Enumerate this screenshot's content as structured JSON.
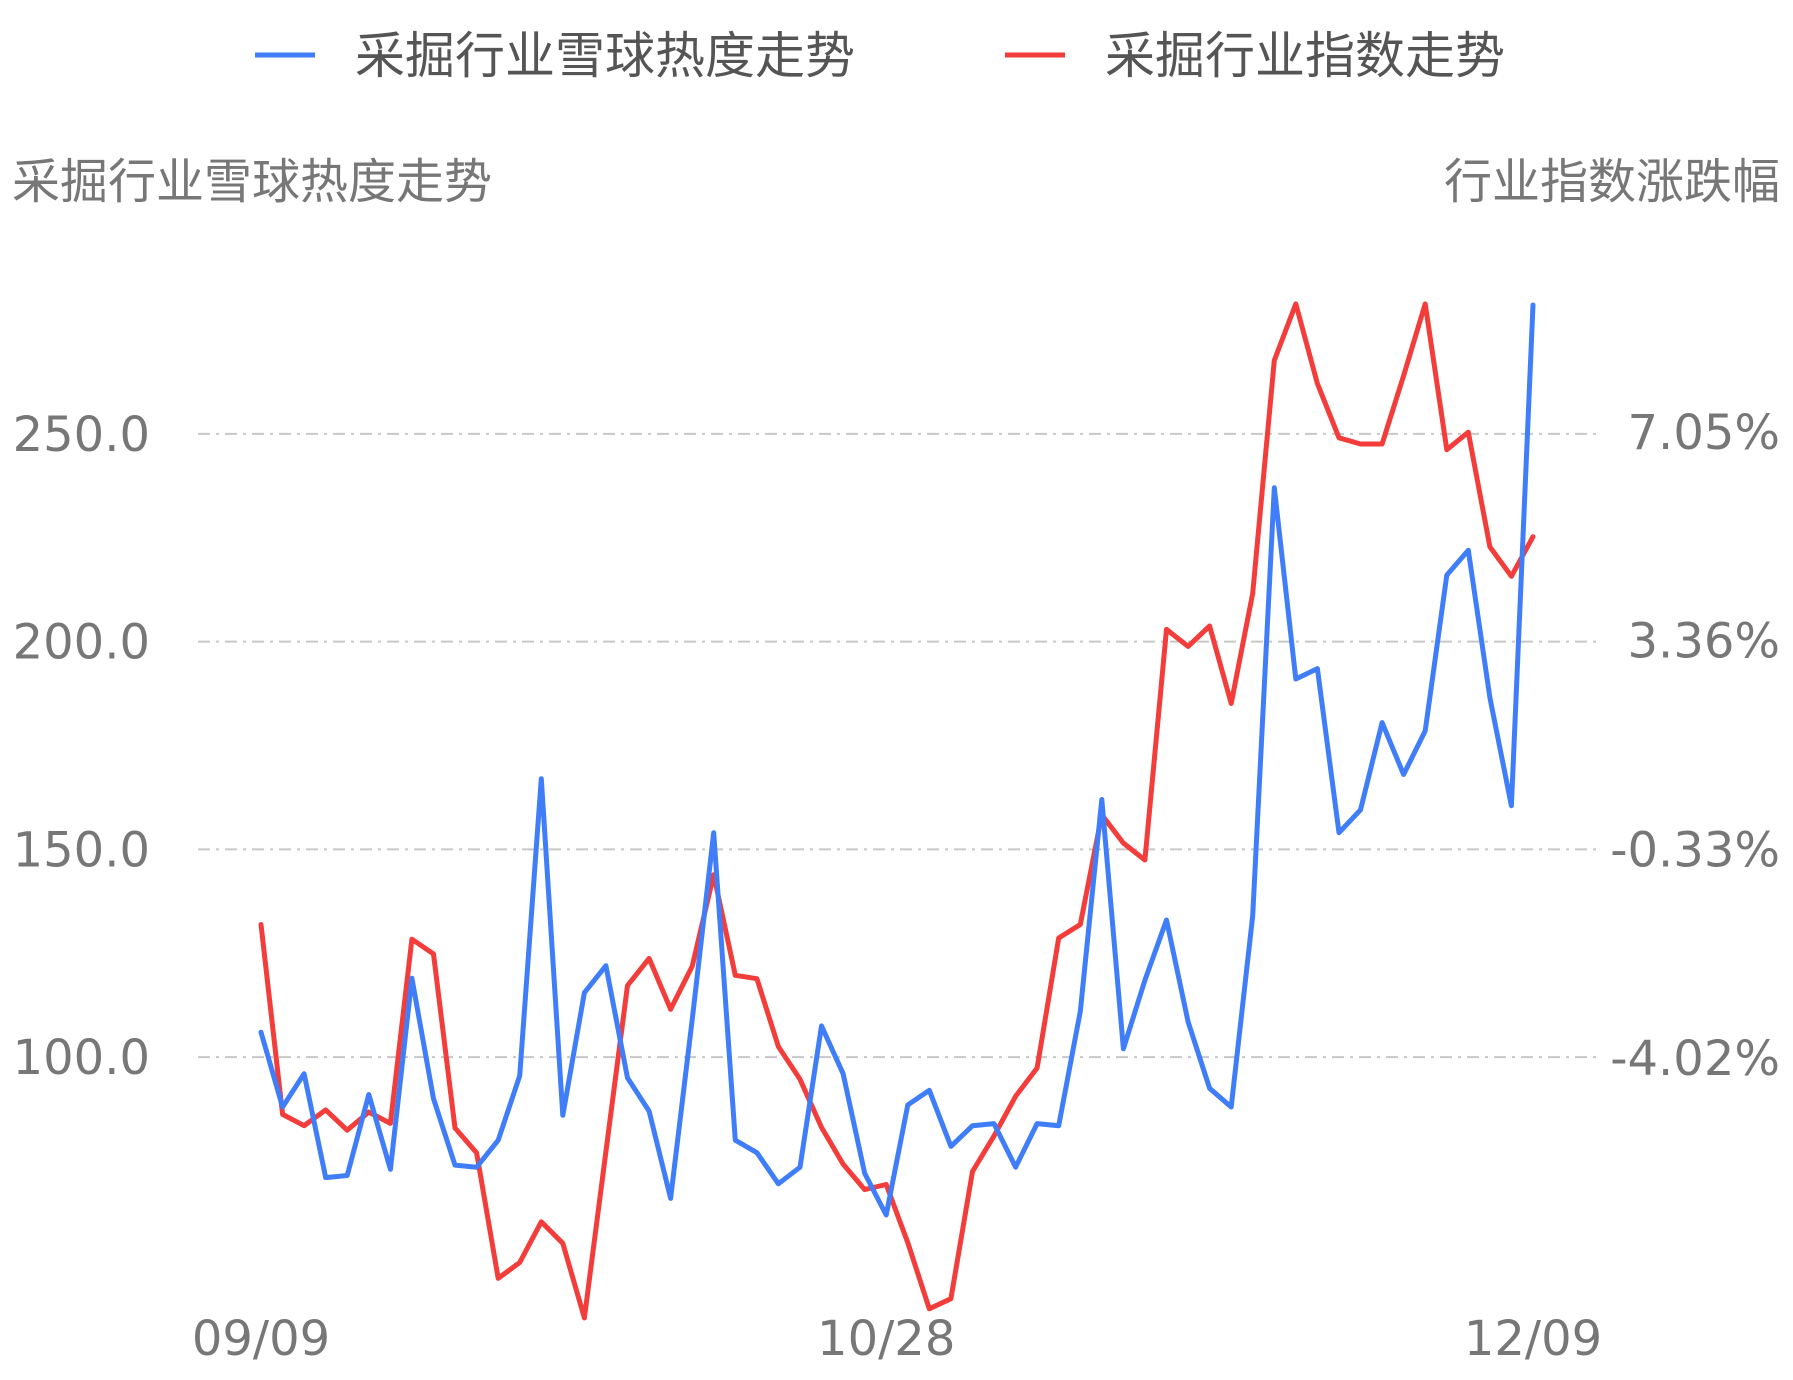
{
  "chart_data": {
    "type": "line",
    "legend": {
      "position": "top",
      "items": [
        {
          "name": "采掘行业雪球热度走势",
          "color": "#3f7ef8"
        },
        {
          "name": "采掘行业指数走势",
          "color": "#f23d3b"
        }
      ]
    },
    "left_axis": {
      "title": "采掘行业雪球热度走势",
      "ticks": [
        {
          "value": 250,
          "label": "250.0"
        },
        {
          "value": 200,
          "label": "200.0"
        },
        {
          "value": 150,
          "label": "150.0"
        },
        {
          "value": 100,
          "label": "100.0"
        }
      ],
      "range": [
        62,
        281
      ]
    },
    "right_axis": {
      "title": "行业指数涨跌幅",
      "ticks": [
        {
          "value": 7.05,
          "label": "7.05%"
        },
        {
          "value": 3.36,
          "label": "3.36%"
        },
        {
          "value": -0.33,
          "label": "-0.33%"
        },
        {
          "value": -4.02,
          "label": "-4.02%"
        }
      ],
      "range": [
        -6.8,
        9.3
      ]
    },
    "x_axis": {
      "ticks": [
        {
          "index": 0,
          "label": "09/09"
        },
        {
          "index": 29,
          "label": "10/28"
        },
        {
          "index": 59,
          "label": "12/09"
        }
      ]
    },
    "grid": true,
    "series": [
      {
        "name": "采掘行业雪球热度走势",
        "axis": "left",
        "color": "#3f7ef8",
        "values": [
          106,
          88,
          96,
          71,
          71.5,
          91,
          73,
          119,
          90,
          74,
          73.5,
          80,
          95.5,
          167,
          86,
          115.5,
          122,
          95,
          87,
          66,
          109,
          154,
          80,
          77,
          69.5,
          73.5,
          107.5,
          96,
          72,
          62,
          88.5,
          92,
          78.5,
          83.5,
          84,
          73.5,
          84,
          83.5,
          111,
          162,
          102,
          118.5,
          133,
          108.5,
          92.5,
          88,
          134,
          237,
          191,
          193.5,
          154,
          159.5,
          180.5,
          168,
          178.5,
          216,
          222,
          186.5,
          160.5,
          281
        ]
      },
      {
        "name": "采掘行业指数走势",
        "axis": "right",
        "color": "#f23d3b",
        "values": [
          -1.66,
          -5.02,
          -5.22,
          -4.94,
          -5.3,
          -4.98,
          -5.18,
          -1.92,
          -2.18,
          -5.26,
          -5.7,
          -7.92,
          -7.64,
          -6.92,
          -7.3,
          -8.62,
          -5.68,
          -2.74,
          -2.26,
          -3.16,
          -2.4,
          -0.78,
          -2.56,
          -2.62,
          -3.82,
          -4.4,
          -5.25,
          -5.9,
          -6.35,
          -6.26,
          -7.29,
          -8.46,
          -8.28,
          -6.03,
          -5.4,
          -4.7,
          -4.2,
          -1.9,
          -1.66,
          0.28,
          -0.22,
          -0.52,
          3.56,
          3.26,
          3.62,
          2.25,
          4.2,
          8.32,
          9.32,
          7.91,
          6.95,
          6.84,
          6.84,
          8.05,
          9.32,
          6.74,
          7.05,
          5.02,
          4.5,
          5.2
        ]
      }
    ]
  }
}
